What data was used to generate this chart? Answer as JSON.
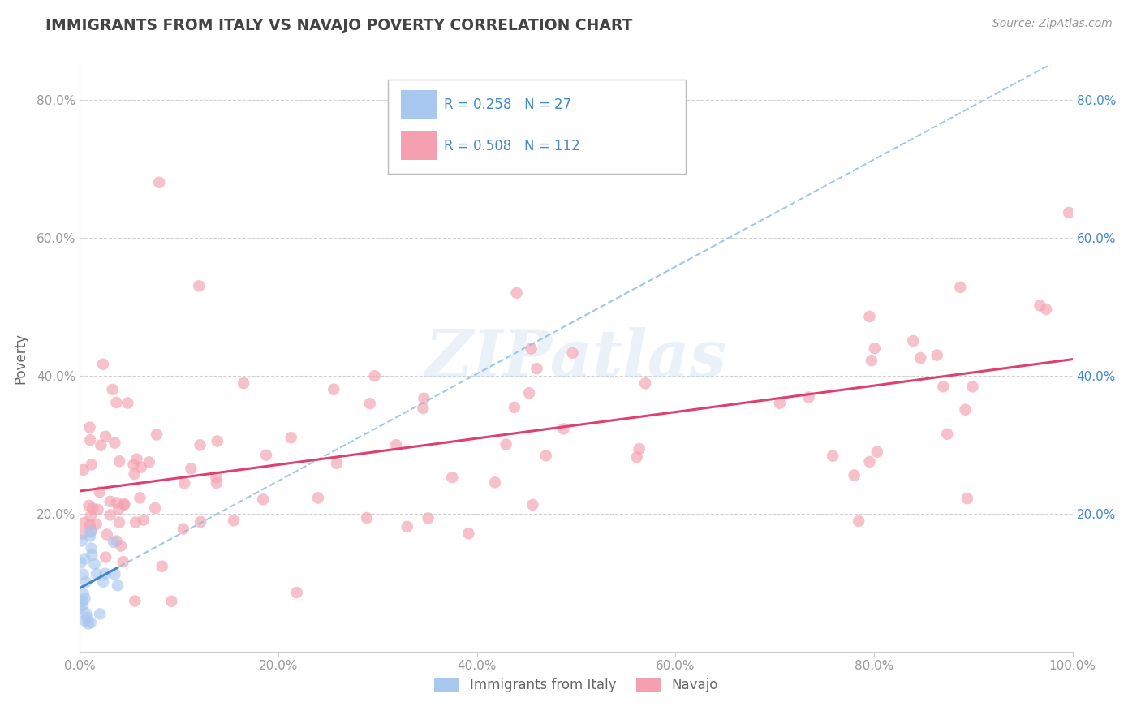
{
  "title": "IMMIGRANTS FROM ITALY VS NAVAJO POVERTY CORRELATION CHART",
  "source_text": "Source: ZipAtlas.com",
  "ylabel": "Poverty",
  "xlim": [
    0.0,
    1.0
  ],
  "ylim": [
    0.0,
    0.85
  ],
  "color_italy": "#A8C8F0",
  "color_navajo": "#F4A0B0",
  "color_italy_line": "#4488CC",
  "color_navajo_line": "#E04070",
  "color_dashed": "#88BBDD",
  "watermark": "ZIPatlas",
  "bg_color": "#FFFFFF",
  "grid_color": "#CCCCCC",
  "title_color": "#444444",
  "axis_label_color": "#666666",
  "tick_label_color": "#999999",
  "legend_text_color": "#4488CC",
  "italy_seed": 77,
  "navajo_seed": 55,
  "legend_r1": "R = 0.258",
  "legend_n1": "N = 27",
  "legend_r2": "R = 0.508",
  "legend_n2": "N = 112"
}
